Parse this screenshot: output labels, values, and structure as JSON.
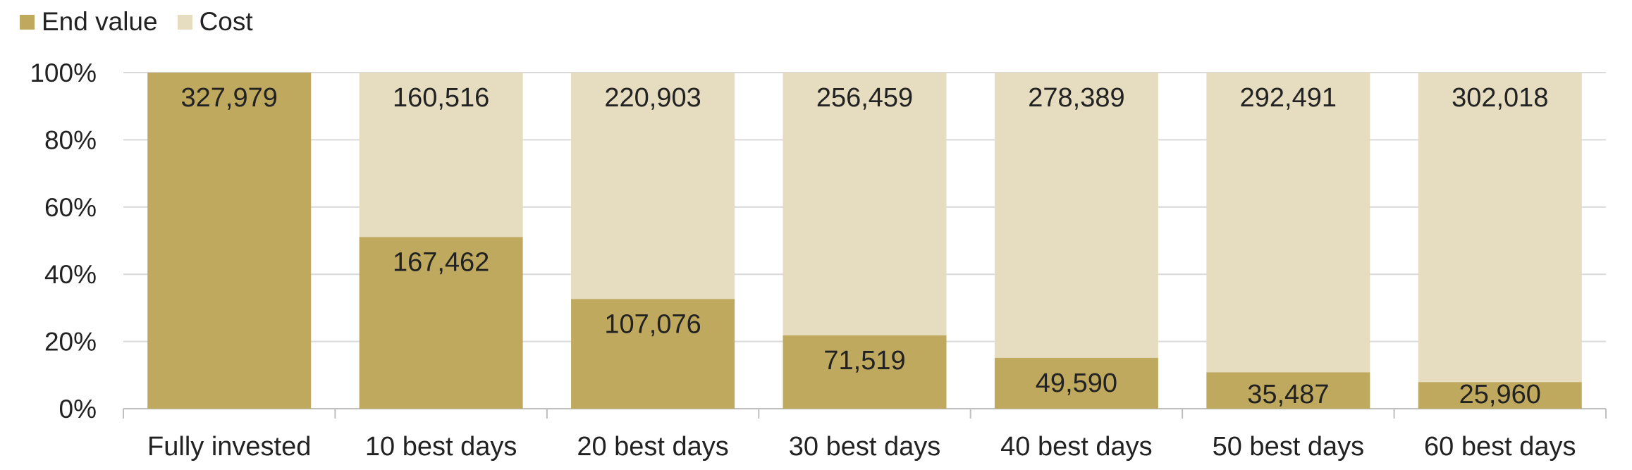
{
  "legend": {
    "end_label": "End value",
    "cost_label": "Cost"
  },
  "colors": {
    "end_value": "#bfa95e",
    "cost": "#e6dcc0",
    "grid": "#d9d9d9",
    "axis": "#bfbfbf"
  },
  "chart_data": {
    "type": "bar",
    "stacked": "percent",
    "title": "",
    "xlabel": "",
    "ylabel": "",
    "ylim": [
      0,
      100
    ],
    "y_ticks": [
      "0%",
      "20%",
      "40%",
      "60%",
      "80%",
      "100%"
    ],
    "grid": true,
    "legend_position": "top-left",
    "categories": [
      "Fully invested",
      "10 best days",
      "20 best days",
      "30 best days",
      "40 best days",
      "50 best days",
      "60 best days"
    ],
    "series": [
      {
        "name": "End value",
        "values": [
          327979,
          167462,
          107076,
          71519,
          49590,
          35487,
          25960
        ],
        "labels": [
          "327,979",
          "167,462",
          "107,076",
          "71,519",
          "49,590",
          "35,487",
          "25,960"
        ]
      },
      {
        "name": "Cost",
        "values": [
          0,
          160516,
          220903,
          256459,
          278389,
          292491,
          302018
        ],
        "labels": [
          "",
          "160,516",
          "220,903",
          "256,459",
          "278,389",
          "292,491",
          "302,018"
        ]
      }
    ]
  }
}
